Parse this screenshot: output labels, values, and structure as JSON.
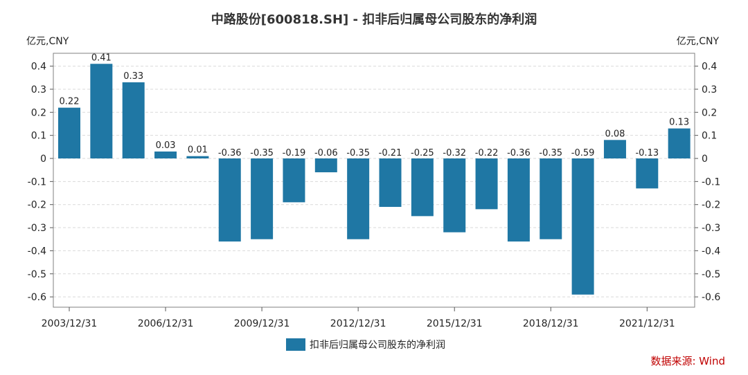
{
  "chart_data": {
    "type": "bar",
    "title": "中路股份[600818.SH] - 扣非后归属母公司股东的净利润",
    "ylabel_left": "亿元,CNY",
    "ylabel_right": "亿元,CNY",
    "ylim": [
      -0.65,
      0.47
    ],
    "yticks": [
      0.4,
      0.3,
      0.2,
      0.1,
      0,
      -0.1,
      -0.2,
      -0.3,
      -0.4,
      -0.5,
      -0.6
    ],
    "ytick_labels": [
      "0.4",
      "0.3",
      "0.2",
      "0.1",
      "0",
      "-0.1",
      "-0.2",
      "-0.3",
      "-0.4",
      "-0.5",
      "-0.6"
    ],
    "categories": [
      "2003/12/31",
      "2004/12/31",
      "2005/12/31",
      "2006/12/31",
      "2007/12/31",
      "2008/12/31",
      "2009/12/31",
      "2010/12/31",
      "2011/12/31",
      "2012/12/31",
      "2013/12/31",
      "2014/12/31",
      "2015/12/31",
      "2016/12/31",
      "2017/12/31",
      "2018/12/31",
      "2019/12/31",
      "2020/12/31",
      "2021/12/31",
      "2022/12/31"
    ],
    "xtick_indices": [
      0,
      3,
      6,
      9,
      12,
      15,
      18
    ],
    "xtick_labels": [
      "2003/12/31",
      "2006/12/31",
      "2009/12/31",
      "2012/12/31",
      "2015/12/31",
      "2018/12/31",
      "2021/12/31"
    ],
    "series": [
      {
        "name": "扣非后归属母公司股东的净利润",
        "color": "#1f77a4",
        "values": [
          0.22,
          0.41,
          0.33,
          0.03,
          0.01,
          -0.36,
          -0.35,
          -0.19,
          -0.06,
          -0.35,
          -0.21,
          -0.25,
          -0.32,
          -0.22,
          -0.36,
          -0.35,
          -0.59,
          0.08,
          -0.13,
          0.13
        ],
        "value_labels": [
          "0.22",
          "0.41",
          "0.33",
          "0.03",
          "0.01",
          "-0.36",
          "-0.35",
          "-0.19",
          "-0.06",
          "-0.35",
          "-0.21",
          "-0.25",
          "-0.32",
          "-0.22",
          "-0.36",
          "-0.35",
          "-0.59",
          "0.08",
          "-0.13",
          "0.13"
        ]
      }
    ],
    "grid": true,
    "legend_position": "bottom-center",
    "source": "数据来源: Wind"
  }
}
